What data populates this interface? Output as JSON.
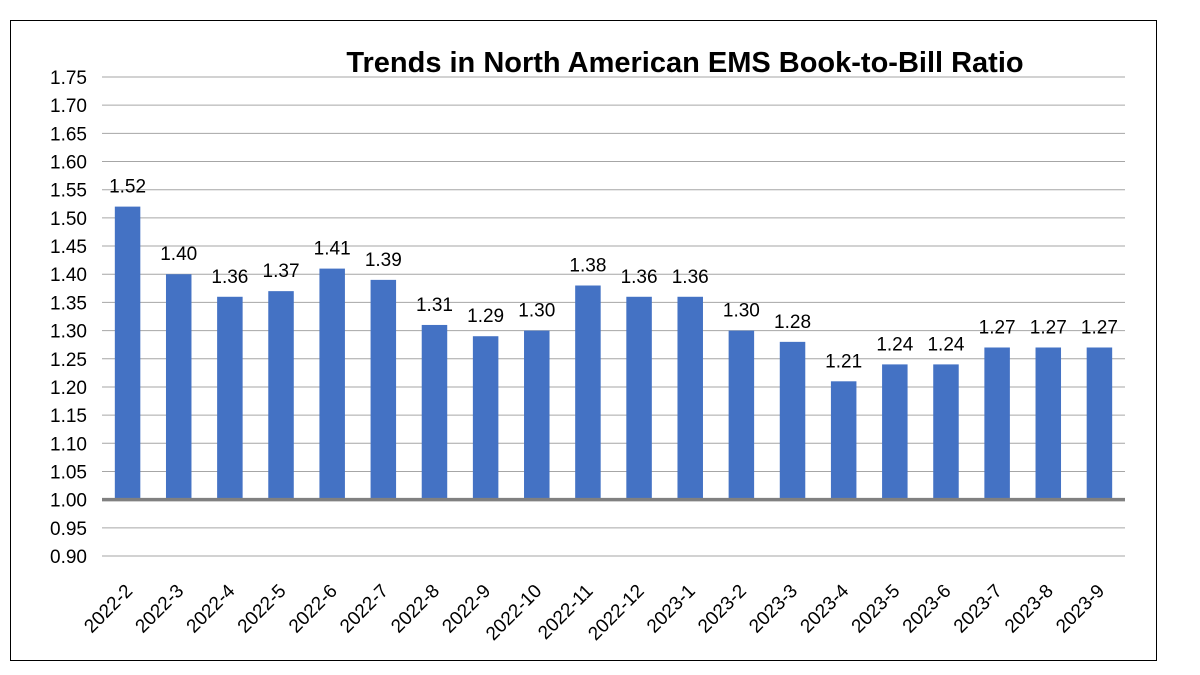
{
  "chart_data": {
    "type": "bar",
    "title": "Trends in North American EMS Book-to-Bill Ratio",
    "xlabel": "",
    "ylabel": "",
    "categories": [
      "2022-2",
      "2022-3",
      "2022-4",
      "2022-5",
      "2022-6",
      "2022-7",
      "2022-8",
      "2022-9",
      "2022-10",
      "2022-11",
      "2022-12",
      "2023-1",
      "2023-2",
      "2023-3",
      "2023-4",
      "2023-5",
      "2023-6",
      "2023-7",
      "2023-8",
      "2023-9"
    ],
    "values": [
      1.52,
      1.4,
      1.36,
      1.37,
      1.41,
      1.39,
      1.31,
      1.29,
      1.3,
      1.38,
      1.36,
      1.36,
      1.3,
      1.28,
      1.21,
      1.24,
      1.24,
      1.27,
      1.27,
      1.27
    ],
    "value_labels": [
      "1.52",
      "1.40",
      "1.36",
      "1.37",
      "1.41",
      "1.39",
      "1.31",
      "1.29",
      "1.30",
      "1.38",
      "1.36",
      "1.36",
      "1.30",
      "1.28",
      "1.21",
      "1.24",
      "1.24",
      "1.27",
      "1.27",
      "1.27"
    ],
    "ylim": [
      0.9,
      1.75
    ],
    "yticks": [
      "0.90",
      "0.95",
      "1.00",
      "1.05",
      "1.10",
      "1.15",
      "1.20",
      "1.25",
      "1.30",
      "1.35",
      "1.40",
      "1.45",
      "1.50",
      "1.55",
      "1.60",
      "1.65",
      "1.70",
      "1.75"
    ],
    "baseline": 1.0,
    "grid": true,
    "legend": "none",
    "colors": {
      "bar": "#4472C4",
      "gridline": "#A6A6A6",
      "baseline": "#808080",
      "text": "#000000",
      "border": "#000000"
    }
  }
}
